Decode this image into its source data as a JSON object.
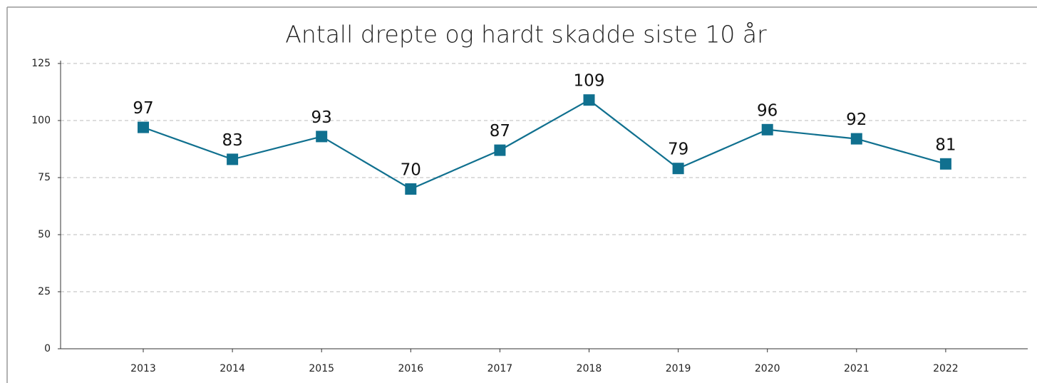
{
  "chart_data": {
    "type": "line",
    "title": "Antall drepte og hardt skadde siste 10 år",
    "categories": [
      "2013",
      "2014",
      "2015",
      "2016",
      "2017",
      "2018",
      "2019",
      "2020",
      "2021",
      "2022"
    ],
    "values": [
      97,
      83,
      93,
      70,
      87,
      109,
      79,
      96,
      92,
      81
    ],
    "color": "#10708f",
    "ylim": [
      0,
      125
    ],
    "yticks": [
      0,
      25,
      50,
      75,
      100,
      125
    ],
    "grid": true
  }
}
